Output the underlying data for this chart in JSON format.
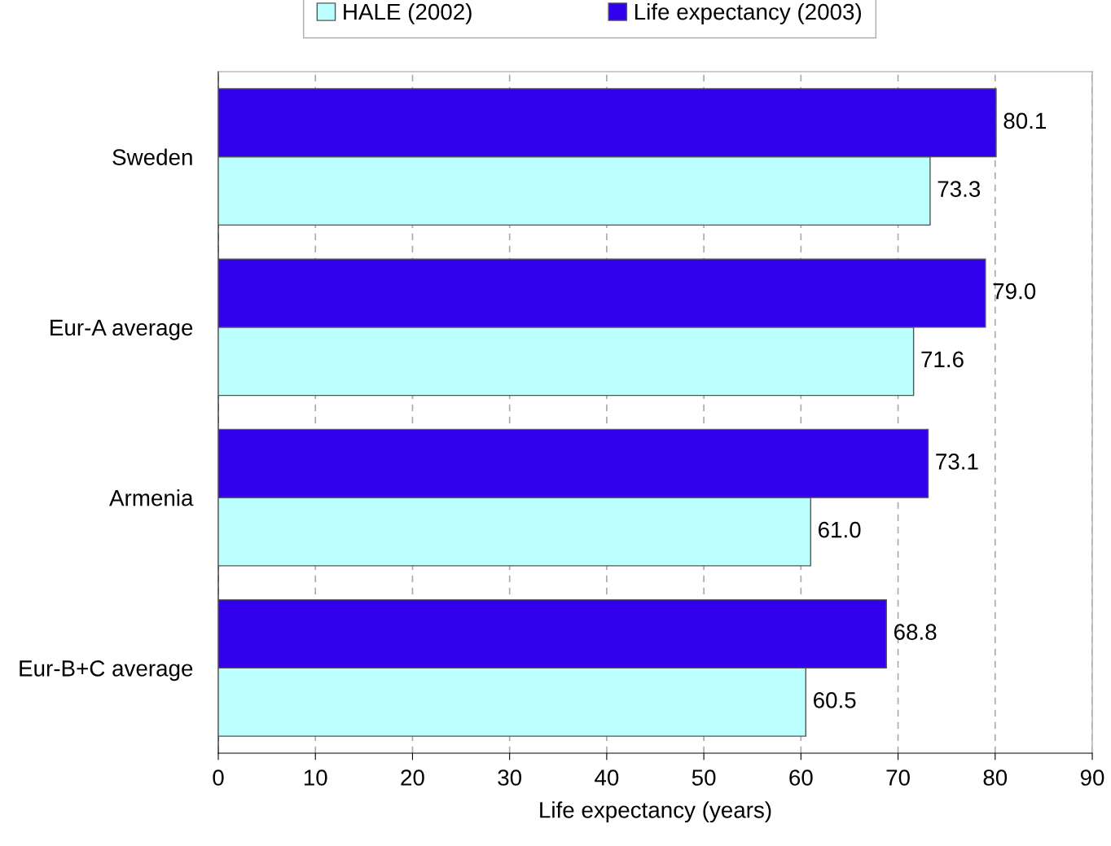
{
  "chart_data": {
    "type": "bar",
    "orientation": "horizontal",
    "xlabel": "Life expectancy (years)",
    "categories": [
      "Sweden",
      "Eur-A average",
      "Armenia",
      "Eur-B+C average"
    ],
    "series": [
      {
        "name": "HALE (2002)",
        "color": "#bbffff",
        "values": [
          73.3,
          71.6,
          61.0,
          60.5
        ],
        "value_labels": [
          "73.3",
          "71.6",
          "61.0",
          "60.5"
        ]
      },
      {
        "name": "Life expectancy (2003)",
        "color": "#3300ee",
        "values": [
          80.1,
          79.0,
          73.1,
          68.8
        ],
        "value_labels": [
          "80.1",
          "79.0",
          "73.1",
          "68.8"
        ]
      }
    ],
    "xlim": [
      0,
      90
    ],
    "xticks": [
      0,
      10,
      20,
      30,
      40,
      50,
      60,
      70,
      80,
      90
    ],
    "grid": "x",
    "legend": "top"
  }
}
